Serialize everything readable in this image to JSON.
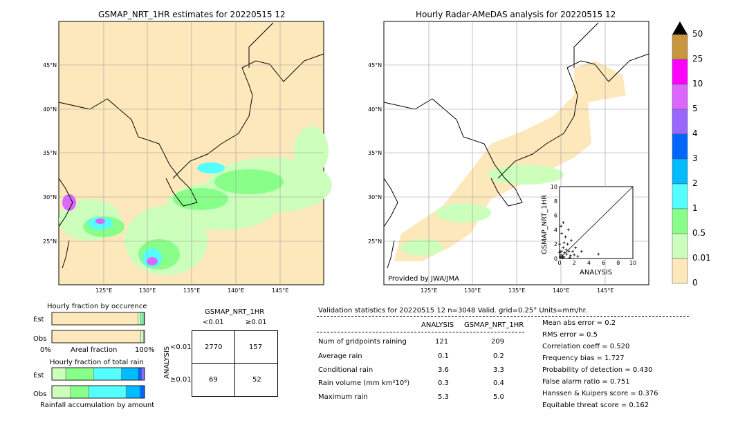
{
  "left_map": {
    "title": "GSMAP_NRT_1HR estimates for 20220515 12",
    "lat_labels": [
      "45°N",
      "40°N",
      "35°N",
      "30°N",
      "25°N"
    ],
    "lon_labels": [
      "125°E",
      "130°E",
      "135°E",
      "140°E",
      "145°E"
    ]
  },
  "right_map": {
    "title": "Hourly Radar-AMeDAS analysis for 20220515 12",
    "lat_labels": [
      "45°N",
      "40°N",
      "35°N",
      "30°N",
      "25°N"
    ],
    "lon_labels": [
      "125°E",
      "130°E",
      "135°E",
      "140°E",
      "145°E"
    ],
    "credit": "Provided by JWA/JMA"
  },
  "colorbar": {
    "labels": [
      "50",
      "25",
      "10",
      "5",
      "4",
      "3",
      "2",
      "1",
      "0.5",
      "0.01",
      "0"
    ],
    "colors": [
      "#c8963c",
      "#ff00ff",
      "#dd66ff",
      "#9966ff",
      "#0066ff",
      "#00bbff",
      "#55ffff",
      "#88ff88",
      "#ccffbb",
      "#fde8bb"
    ],
    "extend_color": "#000000"
  },
  "fraction_occurrence": {
    "title": "Hourly fraction by occurence",
    "rows": [
      "Est",
      "Obs"
    ],
    "axis_left": "0%",
    "axis_mid": "Areal fraction",
    "axis_right": "100%"
  },
  "fraction_rain": {
    "title": "Hourly fraction of total rain",
    "rows": [
      "Est",
      "Obs"
    ],
    "caption": "Rainfall accumulation by amount"
  },
  "contingency": {
    "title": "GSMAP_NRT_1HR",
    "col_labels": [
      "<0.01",
      "≥0.01"
    ],
    "row_axis": "ANALYSIS",
    "row_labels": [
      "<0.01",
      "≥0.01"
    ],
    "cells": [
      [
        "2770",
        "157"
      ],
      [
        "69",
        "52"
      ]
    ]
  },
  "validation": {
    "header": "Validation statistics for 20220515 12  n=3048 Valid. grid=0.25° Units=mm/hr.",
    "col_analysis": "ANALYSIS",
    "col_gsmap": "GSMAP_NRT_1HR",
    "rows": [
      {
        "label": "Num of gridpoints raining",
        "analysis": "121",
        "gsmap": "209"
      },
      {
        "label": "Average rain",
        "analysis": "0.1",
        "gsmap": "0.2"
      },
      {
        "label": "Conditional rain",
        "analysis": "3.6",
        "gsmap": "3.3"
      },
      {
        "label": "Rain volume (mm km²10⁶)",
        "analysis": "0.3",
        "gsmap": "0.4"
      },
      {
        "label": "Maximum rain",
        "analysis": "5.3",
        "gsmap": "5.0"
      }
    ],
    "scores": [
      "Mean abs error =    0.2",
      "RMS error =    0.5",
      "Correlation coeff =  0.520",
      "Frequency bias =  1.727",
      "Probability of detection =  0.430",
      "False alarm ratio =  0.751",
      "Hanssen & Kuipers score =  0.376",
      "Equitable threat score =  0.162"
    ]
  },
  "chart_data": [
    {
      "type": "scatter",
      "xlabel": "ANALYSIS",
      "ylabel": "GSMAP_NRT_1HR",
      "xlim": [
        0,
        10
      ],
      "ylim": [
        0,
        10
      ],
      "ticks": [
        "0",
        "2",
        "4",
        "6",
        "8",
        "10"
      ],
      "points": [
        [
          0.1,
          0.2
        ],
        [
          0.2,
          0.5
        ],
        [
          0.3,
          1.0
        ],
        [
          0.4,
          0.3
        ],
        [
          0.5,
          1.5
        ],
        [
          0.6,
          2.2
        ],
        [
          0.7,
          0.8
        ],
        [
          0.8,
          3.0
        ],
        [
          0.9,
          1.2
        ],
        [
          1.0,
          0.6
        ],
        [
          1.1,
          2.0
        ],
        [
          1.2,
          4.0
        ],
        [
          1.3,
          1.0
        ],
        [
          1.5,
          0.4
        ],
        [
          1.6,
          2.5
        ],
        [
          1.8,
          1.0
        ],
        [
          2.0,
          0.5
        ],
        [
          2.2,
          1.5
        ],
        [
          0.2,
          4.5
        ],
        [
          0.5,
          5.0
        ],
        [
          0.3,
          3.5
        ],
        [
          0.1,
          1.0
        ],
        [
          0.0,
          0.8
        ],
        [
          0.0,
          2.0
        ],
        [
          2.5,
          0.3
        ],
        [
          3.0,
          1.0
        ],
        [
          5.3,
          0.6
        ],
        [
          0.4,
          0.1
        ],
        [
          0.6,
          0.2
        ],
        [
          1.4,
          0.1
        ]
      ]
    },
    {
      "type": "bar",
      "title": "Hourly fraction by occurence",
      "categories": [
        "Est",
        "Obs"
      ],
      "series": [
        {
          "values": [
            0.93,
            0.96
          ],
          "color": "#fde8bb"
        },
        {
          "values": [
            0.03,
            0.03
          ],
          "color": "#ccffbb"
        },
        {
          "values": [
            0.025,
            0.01
          ],
          "color": "#88ff88"
        },
        {
          "values": [
            0.01,
            0.0
          ],
          "color": "#55ffff"
        },
        {
          "values": [
            0.005,
            0.0
          ],
          "color": "#00bbff"
        }
      ]
    },
    {
      "type": "bar",
      "title": "Hourly fraction of total rain",
      "categories": [
        "Est",
        "Obs"
      ],
      "series": [
        {
          "values": [
            0.0,
            0.0
          ],
          "color": "#fde8bb"
        },
        {
          "values": [
            0.15,
            0.2
          ],
          "color": "#ccffbb"
        },
        {
          "values": [
            0.3,
            0.2
          ],
          "color": "#88ff88"
        },
        {
          "values": [
            0.3,
            0.4
          ],
          "color": "#55ffff"
        },
        {
          "values": [
            0.18,
            0.15
          ],
          "color": "#00bbff"
        },
        {
          "values": [
            0.04,
            0.05
          ],
          "color": "#0066ff"
        },
        {
          "values": [
            0.03,
            0.0
          ],
          "color": "#9966ff"
        }
      ]
    }
  ]
}
